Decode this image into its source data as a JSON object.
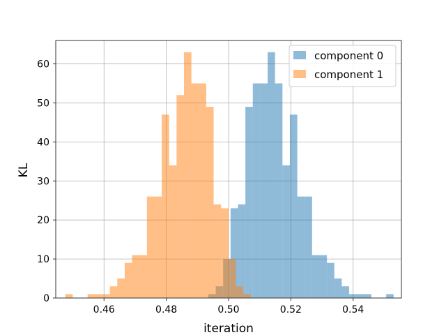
{
  "chart_data": {
    "type": "bar",
    "subtype": "histogram",
    "xlabel": "iteration",
    "ylabel": "KL",
    "xlim": [
      0.4445,
      0.5555
    ],
    "ylim": [
      0,
      66
    ],
    "xticks": [
      0.46,
      0.48,
      0.5,
      0.52,
      0.54
    ],
    "xtick_labels": [
      "0.46",
      "0.48",
      "0.50",
      "0.52",
      "0.54"
    ],
    "yticks": [
      0,
      10,
      20,
      30,
      40,
      50,
      60
    ],
    "ytick_labels": [
      "0",
      "10",
      "20",
      "30",
      "40",
      "50",
      "60"
    ],
    "grid": true,
    "legend_position": "upper right",
    "series": [
      {
        "name": "component 0",
        "color": "#1f77b4",
        "alpha": 0.5,
        "bin_start": 0.4935,
        "bin_width": 0.00238,
        "counts": [
          1,
          3,
          10,
          23,
          24,
          49,
          55,
          55,
          63,
          55,
          34,
          47,
          26,
          26,
          11,
          11,
          9,
          5,
          3,
          1,
          1,
          1,
          0,
          0,
          1
        ]
      },
      {
        "name": "component 1",
        "color": "#ff7f0e",
        "alpha": 0.5,
        "bin_start": 0.4476,
        "bin_width": 0.00238,
        "counts": [
          1,
          0,
          0,
          1,
          1,
          1,
          3,
          5,
          9,
          11,
          11,
          26,
          26,
          47,
          34,
          52,
          63,
          55,
          55,
          49,
          24,
          23,
          10,
          3,
          1
        ]
      }
    ]
  }
}
